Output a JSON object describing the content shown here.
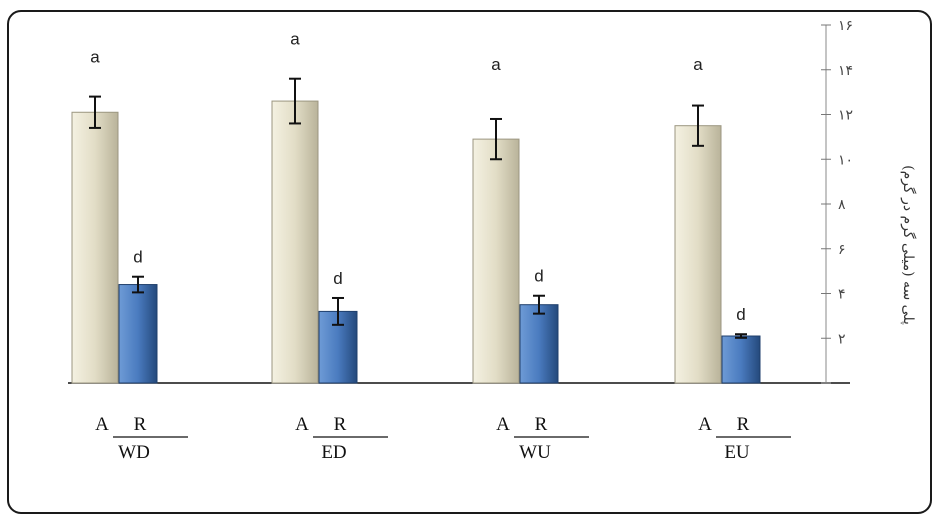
{
  "chart_data": {
    "type": "bar",
    "ylabel": "(پلی سه (میلی گرم در گرم",
    "ylim": [
      0,
      16
    ],
    "yticks": [
      0,
      2,
      4,
      6,
      8,
      10,
      12,
      14,
      16
    ],
    "ytick_labels": [
      "",
      "۲",
      "۴",
      "۶",
      "۸",
      "۱۰",
      "۱۲",
      "۱۴",
      "۱۶"
    ],
    "categories": [
      "WD",
      "ED",
      "WU",
      "EU"
    ],
    "series": [
      {
        "name": "A",
        "color": "#ddd8c2",
        "values": [
          12.1,
          12.6,
          10.9,
          11.5
        ],
        "errors": [
          0.7,
          1.0,
          0.9,
          0.9
        ],
        "labels": [
          "a",
          "a",
          "a",
          "a"
        ]
      },
      {
        "name": "R",
        "color": "#4a7bbf",
        "values": [
          4.4,
          3.2,
          3.5,
          2.1
        ],
        "errors": [
          0.35,
          0.6,
          0.4,
          0.08
        ],
        "labels": [
          "d",
          "d",
          "d",
          "d"
        ]
      }
    ],
    "subgroup_labels": [
      "R",
      "A"
    ],
    "grid": false
  }
}
